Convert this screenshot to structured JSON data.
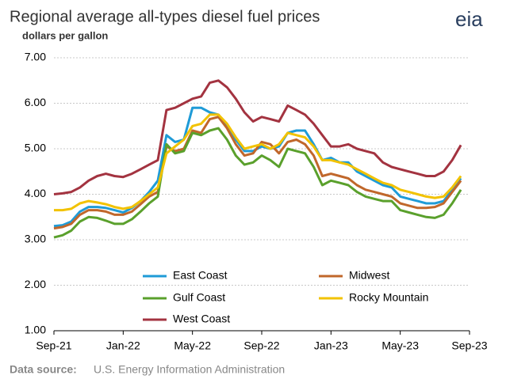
{
  "chart_data": {
    "type": "line",
    "title": "Regional average all-types diesel fuel prices",
    "subtitle": "dollars per gallon",
    "logo": "eia",
    "source_label": "Data source:",
    "source": "U.S. Energy Information Administration",
    "categories": [
      "Sep-21",
      null,
      null,
      null,
      null,
      null,
      null,
      null,
      "Jan-22",
      null,
      null,
      null,
      null,
      null,
      null,
      null,
      "May-22",
      null,
      null,
      null,
      null,
      null,
      null,
      null,
      "Sep-22",
      null,
      null,
      null,
      null,
      null,
      null,
      null,
      "Jan-23",
      null,
      null,
      null,
      null,
      null,
      null,
      null,
      "May-23",
      null,
      null,
      null,
      null,
      null,
      null,
      null,
      "Sep-23"
    ],
    "series": [
      {
        "name": "East Coast",
        "color": "#1f9bd7",
        "values": [
          3.3,
          3.32,
          3.4,
          3.62,
          3.72,
          3.72,
          3.7,
          3.65,
          3.6,
          3.7,
          3.85,
          4.05,
          4.3,
          5.3,
          5.15,
          5.2,
          5.9,
          5.9,
          5.8,
          5.75,
          5.5,
          5.2,
          4.95,
          4.95,
          5.05,
          5.0,
          5.05,
          5.35,
          5.4,
          5.4,
          5.1,
          4.75,
          4.8,
          4.7,
          4.7,
          4.5,
          4.4,
          4.3,
          4.2,
          4.15,
          3.95,
          3.9,
          3.85,
          3.8,
          3.8,
          3.85,
          4.1,
          4.35,
          null
        ]
      },
      {
        "name": "Midwest",
        "color": "#c0672b",
        "values": [
          3.25,
          3.28,
          3.35,
          3.55,
          3.65,
          3.65,
          3.62,
          3.55,
          3.55,
          3.62,
          3.78,
          3.95,
          4.05,
          5.05,
          4.95,
          5.0,
          5.4,
          5.35,
          5.65,
          5.7,
          5.45,
          5.1,
          4.85,
          4.9,
          5.15,
          5.1,
          4.9,
          5.15,
          5.2,
          5.1,
          4.85,
          4.4,
          4.45,
          4.4,
          4.35,
          4.2,
          4.1,
          4.05,
          4.0,
          3.95,
          3.8,
          3.75,
          3.7,
          3.7,
          3.72,
          3.8,
          4.05,
          4.3,
          null
        ]
      },
      {
        "name": "Gulf Coast",
        "color": "#5aa02c",
        "values": [
          3.05,
          3.1,
          3.2,
          3.4,
          3.5,
          3.48,
          3.42,
          3.35,
          3.35,
          3.45,
          3.62,
          3.8,
          3.95,
          5.1,
          4.9,
          4.95,
          5.35,
          5.3,
          5.4,
          5.45,
          5.2,
          4.85,
          4.65,
          4.7,
          4.85,
          4.75,
          4.6,
          5.0,
          4.95,
          4.9,
          4.6,
          4.2,
          4.3,
          4.25,
          4.2,
          4.05,
          3.95,
          3.9,
          3.85,
          3.85,
          3.65,
          3.6,
          3.55,
          3.5,
          3.48,
          3.55,
          3.8,
          4.1,
          null
        ]
      },
      {
        "name": "Rocky Mountain",
        "color": "#f2c200",
        "values": [
          3.65,
          3.65,
          3.68,
          3.8,
          3.85,
          3.82,
          3.78,
          3.72,
          3.68,
          3.72,
          3.85,
          4.0,
          4.15,
          4.9,
          5.05,
          5.2,
          5.5,
          5.55,
          5.75,
          5.75,
          5.55,
          5.25,
          5.0,
          5.05,
          5.1,
          5.0,
          5.1,
          5.35,
          5.3,
          5.25,
          5.05,
          4.75,
          4.75,
          4.7,
          4.65,
          4.55,
          4.45,
          4.35,
          4.25,
          4.2,
          4.1,
          4.05,
          4.0,
          3.95,
          3.92,
          3.95,
          4.15,
          4.4,
          null
        ]
      },
      {
        "name": "West Coast",
        "color": "#a33340",
        "values": [
          4.0,
          4.02,
          4.05,
          4.15,
          4.3,
          4.4,
          4.45,
          4.4,
          4.38,
          4.45,
          4.55,
          4.65,
          4.75,
          5.85,
          5.9,
          6.0,
          6.1,
          6.15,
          6.45,
          6.5,
          6.35,
          6.1,
          5.8,
          5.6,
          5.7,
          5.65,
          5.6,
          5.95,
          5.85,
          5.75,
          5.55,
          5.3,
          5.05,
          5.05,
          5.1,
          5.0,
          4.95,
          4.9,
          4.7,
          4.6,
          4.55,
          4.5,
          4.45,
          4.4,
          4.4,
          4.5,
          4.75,
          5.08,
          null
        ]
      }
    ],
    "ylim": [
      1,
      7
    ],
    "yticks": [
      {
        "value": 1,
        "label": "1.00"
      },
      {
        "value": 2,
        "label": "2.00"
      },
      {
        "value": 3,
        "label": "3.00"
      },
      {
        "value": 4,
        "label": "4.00"
      },
      {
        "value": 5,
        "label": "5.00"
      },
      {
        "value": 6,
        "label": "6.00"
      },
      {
        "value": 7,
        "label": "7.00"
      }
    ],
    "grid": true
  }
}
